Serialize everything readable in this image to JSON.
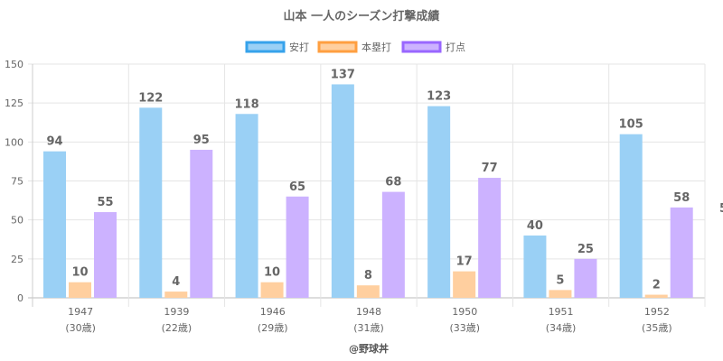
{
  "chart_data": {
    "type": "bar",
    "title": "山本 一人のシーズン打撃成績",
    "categories": [
      "1947",
      "1939",
      "1946",
      "1948",
      "1950",
      "1951",
      "1952"
    ],
    "category_sublabels": [
      "(30歳)",
      "(22歳)",
      "(29歳)",
      "(31歳)",
      "(33歳)",
      "(34歳)",
      "(35歳)"
    ],
    "series": [
      {
        "name": "安打",
        "values": [
          94,
          122,
          118,
          137,
          123,
          40,
          105
        ],
        "fill": "#9ad0f5",
        "border": "#36a2eb"
      },
      {
        "name": "本塁打",
        "values": [
          10,
          4,
          10,
          8,
          17,
          5,
          2
        ],
        "fill": "#ffcf9f",
        "border": "#ff9f40"
      },
      {
        "name": "打点",
        "values": [
          55,
          95,
          65,
          68,
          77,
          25,
          58
        ],
        "fill": "#ccb2ff",
        "border": "#9966ff"
      }
    ],
    "ylim": [
      0,
      150
    ],
    "yticks": [
      0,
      25,
      50,
      75,
      100,
      125,
      150
    ],
    "xlabel": "",
    "ylabel": "",
    "grid": true,
    "legend_position": "top",
    "clipped_label": "5",
    "credit": "@野球丼"
  }
}
